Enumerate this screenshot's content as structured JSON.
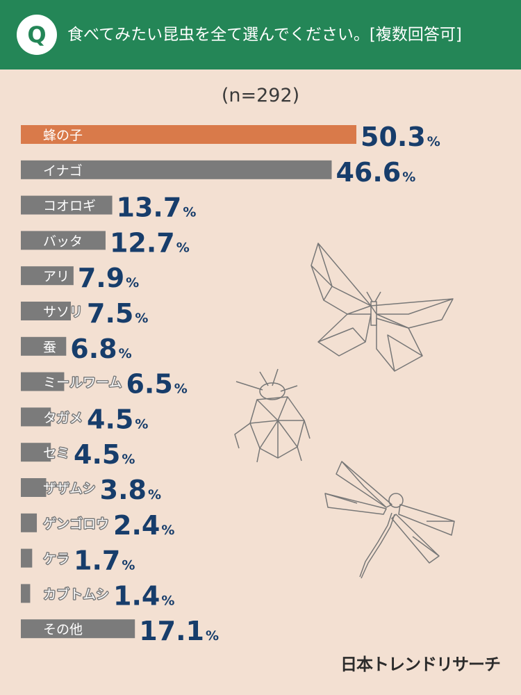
{
  "header": {
    "badge": "Q",
    "question": "食べてみたい昆虫を全て選んでください。[複数回答可]"
  },
  "sample": "(n=292)",
  "brand": "日本トレンドリサーチ",
  "colors": {
    "header_bg": "#248657",
    "highlight_bar": "#d97a4a",
    "bar": "#7b7b7b",
    "value_text": "#173d6b",
    "background": "#f3e0d2"
  },
  "decorations": [
    "butterfly-icon",
    "beetle-icon",
    "dragonfly-icon"
  ],
  "chart_data": {
    "type": "bar",
    "orientation": "horizontal",
    "unit": "%",
    "categories": [
      "蜂の子",
      "イナゴ",
      "コオロギ",
      "バッタ",
      "アリ",
      "サソリ",
      "蚕",
      "ミールワーム",
      "タガメ",
      "セミ",
      "ザザムシ",
      "ゲンゴロウ",
      "ケラ",
      "カブトムシ",
      "その他"
    ],
    "values": [
      50.3,
      46.6,
      13.7,
      12.7,
      7.9,
      7.5,
      6.8,
      6.5,
      4.5,
      4.5,
      3.8,
      2.4,
      1.7,
      1.4,
      17.1
    ],
    "highlight_index": 0,
    "xlim": [
      0,
      50.3
    ]
  }
}
